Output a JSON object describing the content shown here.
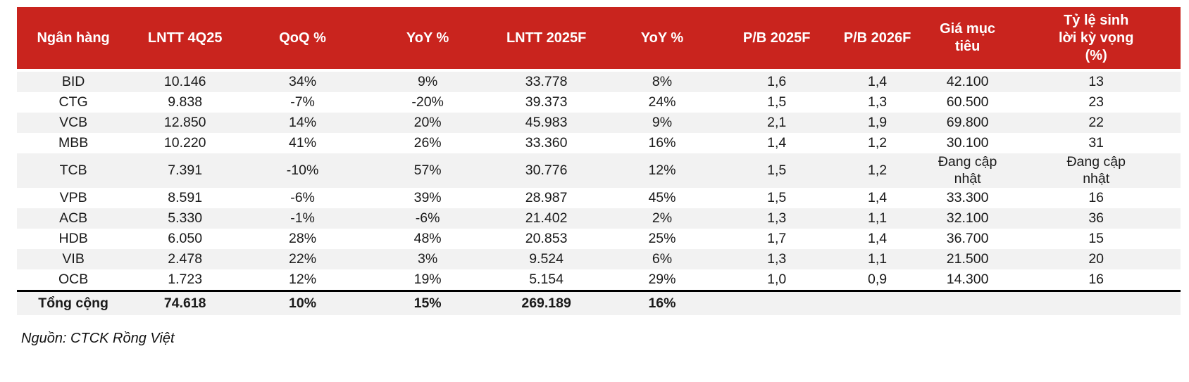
{
  "table": {
    "columns": [
      {
        "key": "bank",
        "label": "Ngân hàng"
      },
      {
        "key": "lntt-4q25",
        "label": "LNTT 4Q25"
      },
      {
        "key": "qoq-pct",
        "label": "QoQ %"
      },
      {
        "key": "yoy-pct",
        "label": "YoY %"
      },
      {
        "key": "lntt-2025f",
        "label": "LNTT 2025F"
      },
      {
        "key": "yoy-2025f-pct",
        "label": "YoY %"
      },
      {
        "key": "pb-2025f",
        "label": "P/B 2025F"
      },
      {
        "key": "pb-2026f",
        "label": "P/B 2026F"
      },
      {
        "key": "target-price",
        "label": "Giá mục tiêu"
      },
      {
        "key": "expected-return",
        "label": "Tỷ lệ sinh lời kỳ vọng (%)"
      }
    ],
    "rows": [
      [
        "BID",
        "10.146",
        "34%",
        "9%",
        "33.778",
        "8%",
        "1,6",
        "1,4",
        "42.100",
        "13"
      ],
      [
        "CTG",
        "9.838",
        "-7%",
        "-20%",
        "39.373",
        "24%",
        "1,5",
        "1,3",
        "60.500",
        "23"
      ],
      [
        "VCB",
        "12.850",
        "14%",
        "20%",
        "45.983",
        "9%",
        "2,1",
        "1,9",
        "69.800",
        "22"
      ],
      [
        "MBB",
        "10.220",
        "41%",
        "26%",
        "33.360",
        "16%",
        "1,4",
        "1,2",
        "30.100",
        "31"
      ],
      [
        "TCB",
        "7.391",
        "-10%",
        "57%",
        "30.776",
        "12%",
        "1,5",
        "1,2",
        "Đang cập nhật",
        "Đang cập nhật"
      ],
      [
        "VPB",
        "8.591",
        "-6%",
        "39%",
        "28.987",
        "45%",
        "1,5",
        "1,4",
        "33.300",
        "16"
      ],
      [
        "ACB",
        "5.330",
        "-1%",
        "-6%",
        "21.402",
        "2%",
        "1,3",
        "1,1",
        "32.100",
        "36"
      ],
      [
        "HDB",
        "6.050",
        "28%",
        "48%",
        "20.853",
        "25%",
        "1,7",
        "1,4",
        "36.700",
        "15"
      ],
      [
        "VIB",
        "2.478",
        "22%",
        "3%",
        "9.524",
        "6%",
        "1,3",
        "1,1",
        "21.500",
        "20"
      ],
      [
        "OCB",
        "1.723",
        "12%",
        "19%",
        "5.154",
        "29%",
        "1,0",
        "0,9",
        "14.300",
        "16"
      ]
    ],
    "total_row": [
      "Tổng cộng",
      "74.618",
      "10%",
      "15%",
      "269.189",
      "16%",
      "",
      "",
      "",
      ""
    ],
    "source": "Nguồn: CTCK Rồng Việt"
  },
  "colors": {
    "header_bg": "#C9241E",
    "header_text": "#FFFFFF",
    "stripe_bg": "#F2F2F2",
    "total_border": "#000000",
    "text": "#1A1A1A"
  }
}
